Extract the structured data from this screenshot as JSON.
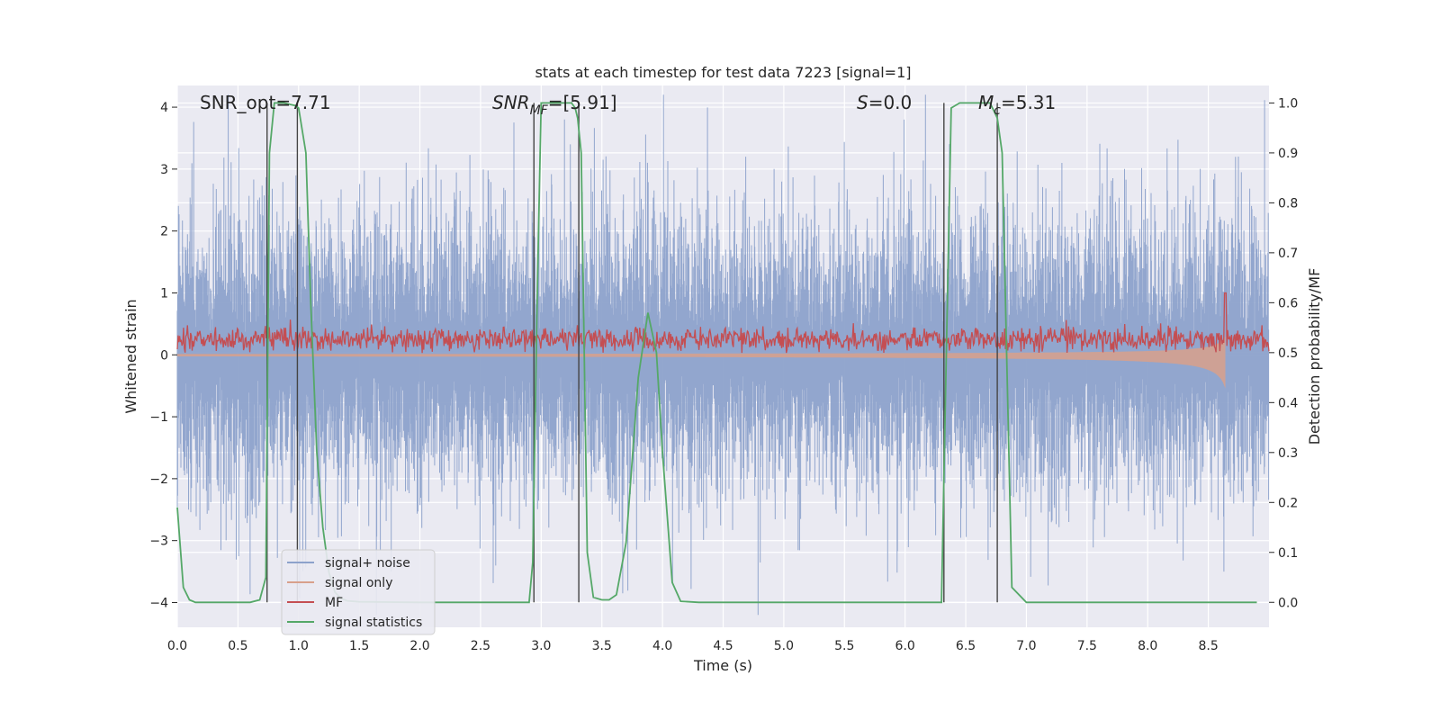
{
  "chart_data": {
    "type": "line",
    "title": "stats at each timestep for test data 7223 [signal=1]",
    "xlabel": "Time (s)",
    "ylabel": "Whitened strain",
    "ylabel_right": "Detection probability/MF",
    "xlim": [
      0,
      9.0
    ],
    "ylim": [
      -4.4,
      4.35
    ],
    "ylim_right": [
      -0.05,
      1.035
    ],
    "x_ticks": [
      "0.0",
      "0.5",
      "1.0",
      "1.5",
      "2.0",
      "2.5",
      "3.0",
      "3.5",
      "4.0",
      "4.5",
      "5.0",
      "5.5",
      "6.0",
      "6.5",
      "7.0",
      "7.5",
      "8.0",
      "8.5"
    ],
    "y_ticks": [
      "4",
      "3",
      "2",
      "1",
      "0",
      "−1",
      "−2",
      "−3",
      "−4"
    ],
    "y_ticks_right": [
      "1.0",
      "0.9",
      "0.8",
      "0.7",
      "0.6",
      "0.5",
      "0.4",
      "0.3",
      "0.2",
      "0.1",
      "0.0"
    ],
    "annotations": {
      "snr_opt": "SNR_opt=7.71",
      "snr_mf_base": "SNR",
      "snr_mf_sub": "MF",
      "snr_mf_value": "=[5.91]",
      "s_var": "S",
      "s_value": "=0.0",
      "mc_var": "M",
      "mc_sub": "c",
      "mc_value": "=5.31"
    },
    "legend": {
      "placement": "lower-left",
      "entries": [
        "signal+ noise",
        "signal only",
        "MF",
        "signal statistics"
      ]
    },
    "colors": {
      "noise": "#8da2cb",
      "signal": "#d8a08b",
      "mf": "#c44e52",
      "stats": "#55a868",
      "vlines": "#444444",
      "background": "#eaeaf2",
      "grid": "#ffffff"
    },
    "vertical_lines_x": [
      0.74,
      0.99,
      2.94,
      3.31,
      6.32,
      6.76
    ],
    "series": [
      {
        "name": "signal statistics",
        "axis": "right",
        "x": [
          0.0,
          0.05,
          0.1,
          0.15,
          0.2,
          0.3,
          0.6,
          0.68,
          0.73,
          0.76,
          0.8,
          0.88,
          0.97,
          1.0,
          1.06,
          1.1,
          1.15,
          1.2,
          1.25,
          1.3,
          1.35,
          1.4,
          1.5,
          2.0,
          2.5,
          2.9,
          2.93,
          2.97,
          3.0,
          3.1,
          3.2,
          3.25,
          3.28,
          3.3,
          3.33,
          3.38,
          3.43,
          3.5,
          3.56,
          3.62,
          3.7,
          3.8,
          3.88,
          3.95,
          4.0,
          4.08,
          4.15,
          4.3,
          6.0,
          6.3,
          6.34,
          6.38,
          6.45,
          6.7,
          6.76,
          6.8,
          6.88,
          7.0,
          8.9
        ],
        "values": [
          0.19,
          0.03,
          0.005,
          0.0,
          0.0,
          0.0,
          0.0,
          0.005,
          0.05,
          0.9,
          1.0,
          1.0,
          0.995,
          0.99,
          0.9,
          0.6,
          0.3,
          0.15,
          0.06,
          0.02,
          0.008,
          0.003,
          0.001,
          0.0,
          0.0,
          0.0,
          0.08,
          0.65,
          1.0,
          1.0,
          1.0,
          1.0,
          0.99,
          0.97,
          0.9,
          0.1,
          0.01,
          0.005,
          0.005,
          0.015,
          0.12,
          0.45,
          0.58,
          0.5,
          0.3,
          0.04,
          0.002,
          0.0,
          0.0,
          0.0,
          0.5,
          0.99,
          1.0,
          1.0,
          0.97,
          0.9,
          0.03,
          0.0,
          0.0
        ]
      },
      {
        "name": "signal only",
        "axis": "left",
        "chirp_end_x": 8.64,
        "chirp_end_amplitude": 0.8
      },
      {
        "name": "MF",
        "axis": "left",
        "baseline": 0.25,
        "peak_x": 8.64,
        "peak_value": 1.0
      },
      {
        "name": "signal+ noise",
        "axis": "left",
        "rms": 1.1
      }
    ]
  }
}
